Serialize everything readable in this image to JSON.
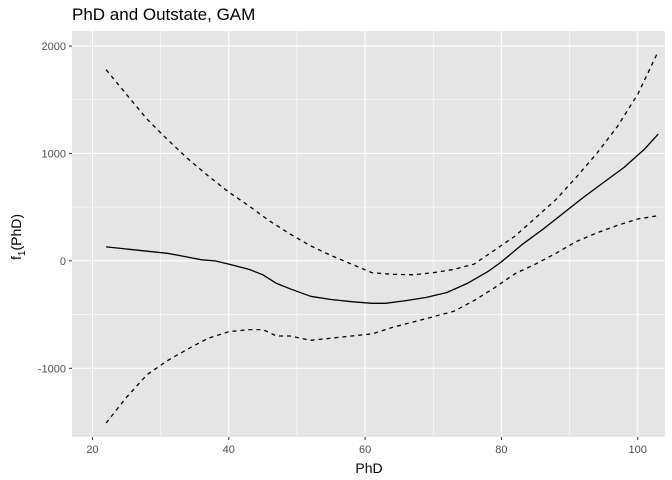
{
  "chart_data": {
    "type": "line",
    "title": "PhD and Outstate, GAM",
    "xlabel": "PhD",
    "ylabel": {
      "main": "f",
      "sub": "1",
      "suffix": "(PhD)"
    },
    "xlim": [
      17,
      104
    ],
    "ylim": [
      -1640,
      2140
    ],
    "xticks": [
      20,
      40,
      60,
      80,
      100
    ],
    "yticks": [
      -1000,
      0,
      1000,
      2000
    ],
    "grid": true,
    "legend": "none",
    "colors": {
      "panel": "#e5e5e5",
      "grid": "#ffffff",
      "line": "#000000"
    },
    "series": [
      {
        "style": "solid",
        "x": [
          22,
          25,
          28,
          31,
          34,
          36,
          38,
          40,
          43,
          45,
          47,
          49,
          52,
          55,
          58,
          61,
          63,
          66,
          69,
          72,
          75,
          78,
          80,
          83,
          86,
          89,
          92,
          95,
          98,
          101,
          103
        ],
        "y": [
          130,
          110,
          90,
          70,
          35,
          10,
          0,
          -30,
          -80,
          -130,
          -210,
          -260,
          -330,
          -360,
          -380,
          -395,
          -395,
          -370,
          -340,
          -295,
          -210,
          -100,
          -10,
          150,
          290,
          440,
          590,
          730,
          870,
          1040,
          1180
        ]
      },
      {
        "style": "dashed",
        "x": [
          22,
          25,
          28,
          31,
          34,
          37,
          40,
          43,
          46,
          49,
          52,
          55,
          58,
          61,
          64,
          67,
          70,
          73,
          76,
          79,
          82,
          85,
          88,
          91,
          94,
          97,
          100,
          103
        ],
        "y": [
          1780,
          1550,
          1320,
          1130,
          950,
          790,
          640,
          510,
          370,
          250,
          140,
          50,
          -30,
          -110,
          -125,
          -130,
          -110,
          -80,
          -30,
          100,
          230,
          400,
          570,
          780,
          1000,
          1250,
          1550,
          1950
        ]
      },
      {
        "style": "dashed",
        "x": [
          22,
          25,
          28,
          31,
          34,
          37,
          40,
          43,
          45,
          47,
          49,
          52,
          55,
          58,
          61,
          64,
          67,
          70,
          73,
          76,
          79,
          82,
          85,
          88,
          91,
          94,
          97,
          100,
          103
        ],
        "y": [
          -1510,
          -1270,
          -1060,
          -930,
          -820,
          -720,
          -660,
          -640,
          -640,
          -700,
          -700,
          -740,
          -720,
          -700,
          -680,
          -620,
          -570,
          -520,
          -470,
          -370,
          -250,
          -120,
          -30,
          70,
          180,
          260,
          330,
          390,
          420
        ]
      }
    ]
  }
}
